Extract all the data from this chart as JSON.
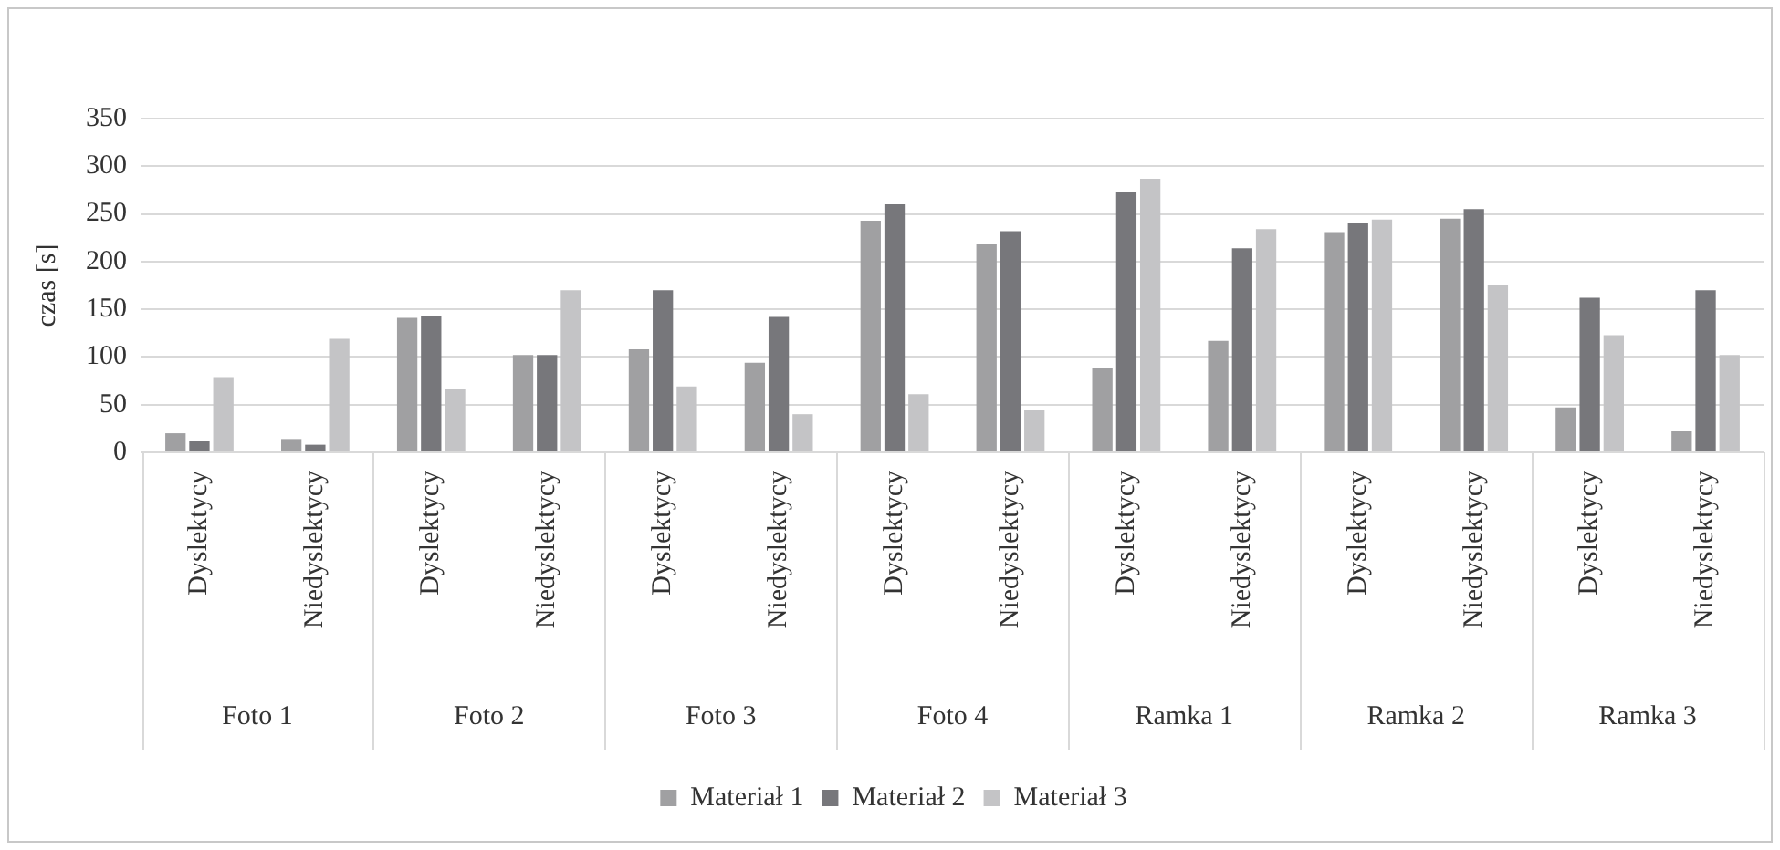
{
  "chart_data": {
    "type": "bar",
    "ylabel": "czas [s]",
    "categories": [
      "Dyslektycy",
      "Niedyslektycy",
      "Dyslektycy",
      "Niedyslektycy",
      "Dyslektycy",
      "Niedyslektycy",
      "Dyslektycy",
      "Niedyslektycy",
      "Dyslektycy",
      "Niedyslektycy",
      "Dyslektycy",
      "Niedyslektycy",
      "Dyslektycy",
      "Niedyslektycy"
    ],
    "annotations": [
      "Foto 1",
      "Foto 2",
      "Foto 3",
      "Foto 4",
      "Ramka 1",
      "Ramka 2",
      "Ramka 3"
    ],
    "series": [
      {
        "name": "Materiał 1",
        "color": "#a0a0a2",
        "values": [
          20,
          14,
          141,
          102,
          108,
          94,
          243,
          218,
          88,
          117,
          231,
          245,
          47,
          22
        ]
      },
      {
        "name": "Materiał 2",
        "color": "#77777b",
        "values": [
          12,
          8,
          143,
          102,
          170,
          142,
          260,
          232,
          273,
          214,
          241,
          255,
          162,
          170
        ]
      },
      {
        "name": "Materiał 3",
        "color": "#c4c4c6",
        "values": [
          79,
          119,
          66,
          170,
          69,
          40,
          61,
          44,
          287,
          234,
          244,
          175,
          123,
          102
        ]
      }
    ],
    "ylim": [
      0,
      350
    ],
    "yticks": [
      0,
      50,
      100,
      150,
      200,
      250,
      300,
      350
    ],
    "grid": "y",
    "legend": "bottom"
  }
}
